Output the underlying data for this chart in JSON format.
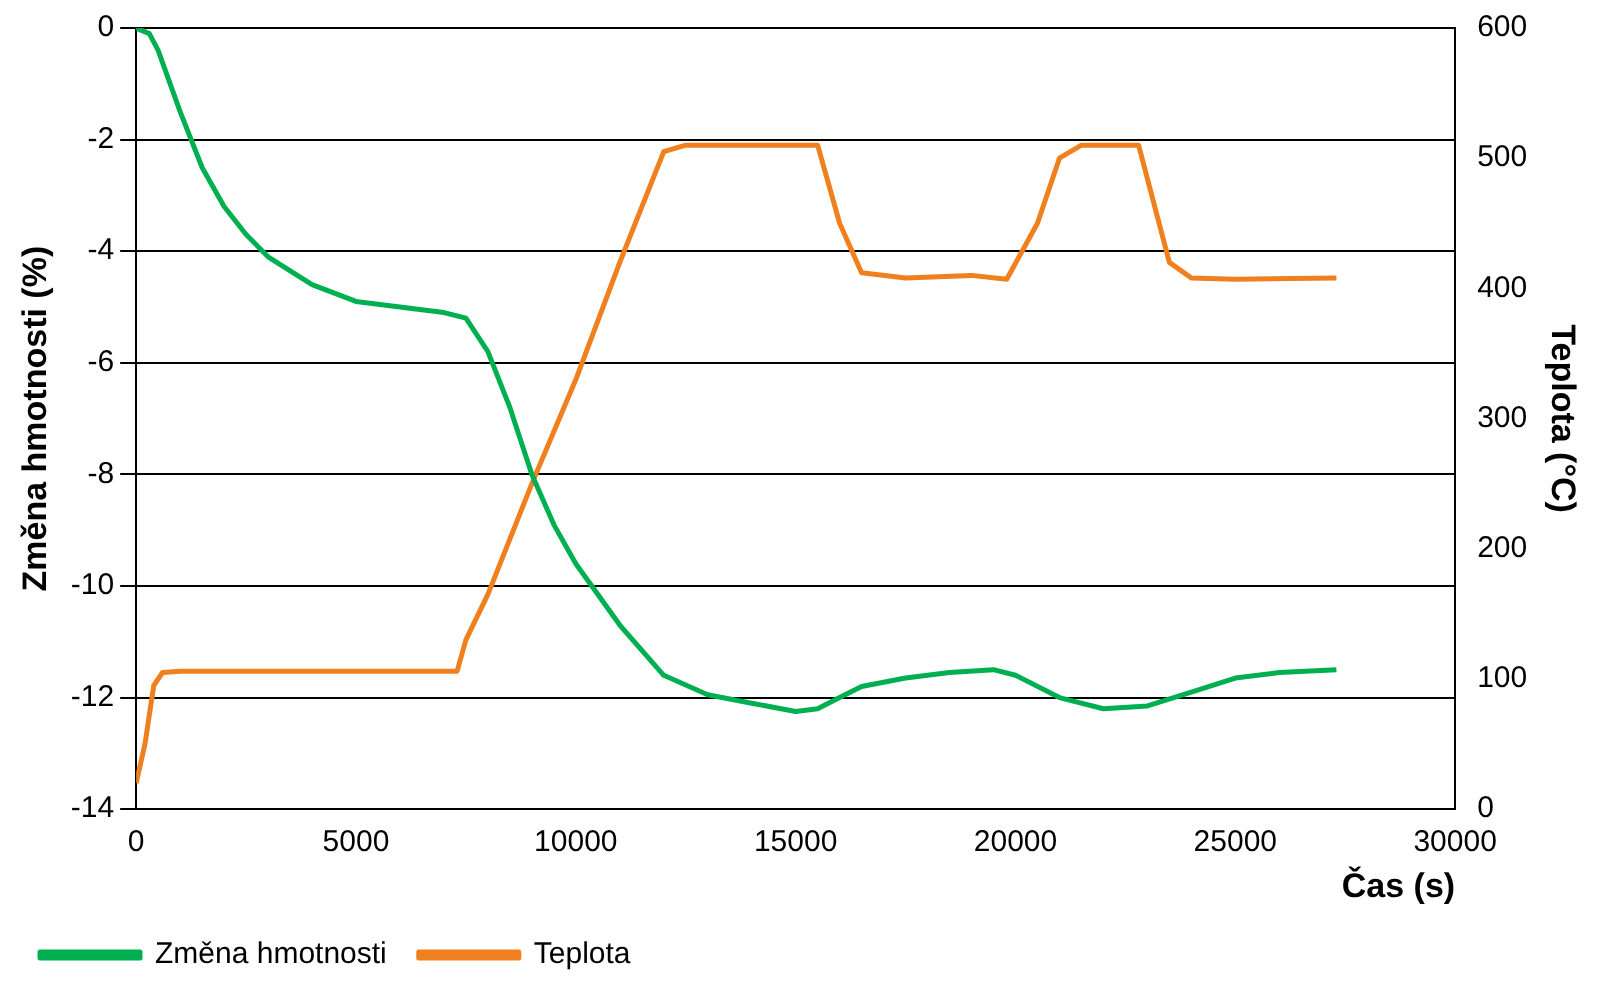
{
  "chart_data": {
    "type": "line",
    "xlabel": "Čas (s)",
    "ylabel": "Změna hmotnosti (%)",
    "y2label": "Teplota (°C)",
    "xlim": [
      0,
      30000
    ],
    "xticks": [
      0,
      5000,
      10000,
      15000,
      20000,
      25000,
      30000
    ],
    "ylim": [
      -14,
      0
    ],
    "yticks": [
      -14,
      -12,
      -10,
      -8,
      -6,
      -4,
      -2,
      0
    ],
    "y2lim": [
      0,
      600
    ],
    "y2ticks": [
      0,
      100,
      200,
      300,
      400,
      500,
      600
    ],
    "grid": "y",
    "legend": "bottom",
    "marker": "none",
    "line_style": "solid",
    "series": [
      {
        "name": "Změna hmotnosti",
        "color": "#00b050",
        "x": [
          0,
          300,
          500,
          1000,
          1500,
          2000,
          2500,
          3000,
          4000,
          5000,
          6000,
          7000,
          7500,
          8000,
          8500,
          9000,
          9500,
          10000,
          11000,
          12000,
          13000,
          14000,
          15000,
          15500,
          16000,
          16500,
          17500,
          18500,
          19500,
          20000,
          21000,
          22000,
          23000,
          24000,
          25000,
          26000,
          27300
        ],
        "values": [
          0,
          -0.1,
          -0.4,
          -1.5,
          -2.5,
          -3.2,
          -3.7,
          -4.1,
          -4.6,
          -4.9,
          -5.0,
          -5.1,
          -5.2,
          -5.8,
          -6.8,
          -8.0,
          -8.9,
          -9.6,
          -10.7,
          -11.6,
          -11.95,
          -12.1,
          -12.25,
          -12.2,
          -12.0,
          -11.8,
          -11.65,
          -11.55,
          -11.5,
          -11.6,
          -12.0,
          -12.2,
          -12.15,
          -11.9,
          -11.65,
          -11.55,
          -11.5
        ]
      },
      {
        "name": "Teplota",
        "color": "#f07f1e",
        "axis": "y2",
        "x": [
          0,
          200,
          400,
          600,
          1000,
          7000,
          7300,
          7500,
          8000,
          9000,
          10000,
          11000,
          12000,
          12500,
          15500,
          16000,
          16500,
          17500,
          19000,
          19800,
          20500,
          21000,
          21500,
          22800,
          23500,
          24000,
          25000,
          27300
        ],
        "values": [
          20,
          50,
          95,
          105,
          106,
          106,
          106,
          130,
          165,
          250,
          330,
          420,
          505,
          510,
          510,
          450,
          412,
          408,
          410,
          407,
          450,
          500,
          510,
          510,
          420,
          408,
          407,
          408
        ]
      }
    ]
  }
}
